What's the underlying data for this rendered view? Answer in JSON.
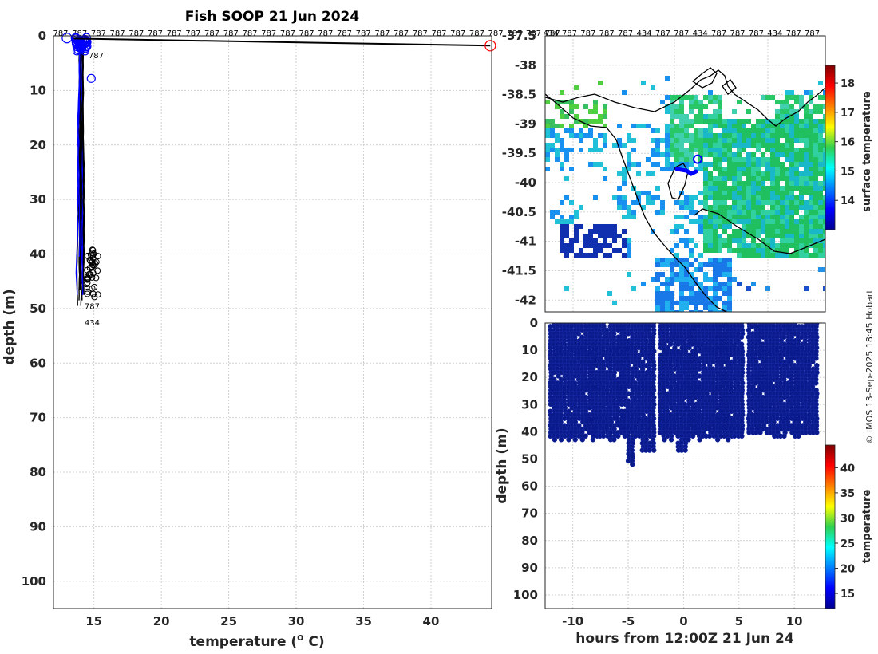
{
  "chart_data": [
    {
      "id": "profile",
      "type": "line",
      "title": "Fish SOOP 21 Jun 2024",
      "xlabel": "temperature (",
      "xlabel_sup": "o",
      "xlabel_unit": " C)",
      "ylabel": "depth (m)",
      "xlim": [
        12,
        44.5
      ],
      "ylim": [
        105,
        0
      ],
      "xticks": [
        15,
        20,
        25,
        30,
        35,
        40
      ],
      "yticks": [
        0,
        10,
        20,
        30,
        40,
        50,
        60,
        70,
        80,
        90,
        100
      ],
      "top_labels": [
        "787",
        "787",
        "787",
        "787",
        "787",
        "787",
        "787",
        "787",
        "787",
        "787",
        "787",
        "787",
        "787",
        "787",
        "787",
        "787",
        "787",
        "787",
        "787",
        "787",
        "787",
        "787",
        "787",
        "787",
        "787",
        "787",
        "787"
      ],
      "profile_labels": [
        {
          "text": "787",
          "temperature": 14.6,
          "depth": 3.5
        },
        {
          "text": "787",
          "temperature": 14.3,
          "depth": 49.5
        },
        {
          "text": "434",
          "temperature": 14.3,
          "depth": 52.5
        }
      ],
      "series": [
        {
          "name": "outlier-segment",
          "color": "#000000",
          "temperature": [
            13.5,
            44.4
          ],
          "depth": [
            0.5,
            1.8
          ]
        },
        {
          "name": "outlier-start",
          "color": "#0000ff",
          "temperature": [
            13.0
          ],
          "depth": [
            0.4
          ]
        },
        {
          "name": "outlier-end",
          "color": "#ff0000",
          "temperature": [
            44.4
          ],
          "depth": [
            1.8
          ]
        }
      ]
    },
    {
      "id": "map",
      "type": "heatmap",
      "yticks": [
        -37.5,
        -38,
        -38.5,
        -39,
        -39.5,
        -40,
        -40.5,
        -41,
        -41.5,
        -42
      ],
      "ylim": [
        -42.2,
        -37.5
      ],
      "top_labels": [
        "434",
        "787",
        "787",
        "787",
        "787",
        "434",
        "787",
        "787",
        "434",
        "787",
        "787",
        "787",
        "434",
        "787",
        "787"
      ],
      "colorbar_label": "surface temperature",
      "colorbar_ticks": [
        14,
        15,
        16,
        17,
        18
      ],
      "colorbar_range": [
        13,
        18.6
      ],
      "vessel_position": {
        "lon": 145.05,
        "lat": -39.6
      }
    },
    {
      "id": "section",
      "type": "scatter",
      "xlabel": "hours from 12:00Z 21 Jun 24",
      "ylabel": "depth (m)",
      "xlim": [
        -12.5,
        12.8
      ],
      "ylim": [
        105,
        0
      ],
      "xticks": [
        -10,
        -5,
        0,
        5,
        10
      ],
      "yticks": [
        0,
        10,
        20,
        30,
        40,
        50,
        60,
        70,
        80,
        90,
        100
      ],
      "colorbar_label": "temperature",
      "colorbar_ticks": [
        15,
        20,
        25,
        30,
        35,
        40
      ],
      "colorbar_range": [
        12,
        44.5
      ],
      "gaps_hours": [
        [
          -4.6,
          -4.4
        ],
        [
          -2.5,
          -2.3
        ],
        [
          5.4,
          5.8
        ]
      ]
    }
  ],
  "credit": "© IMOS 13-Sep-2025 18:45 Hobart",
  "colors": {
    "profile_line": "#000000",
    "profile_points": "#0000ff",
    "outlier_end": "#ff0000",
    "section_points": "#0a1a8a"
  }
}
